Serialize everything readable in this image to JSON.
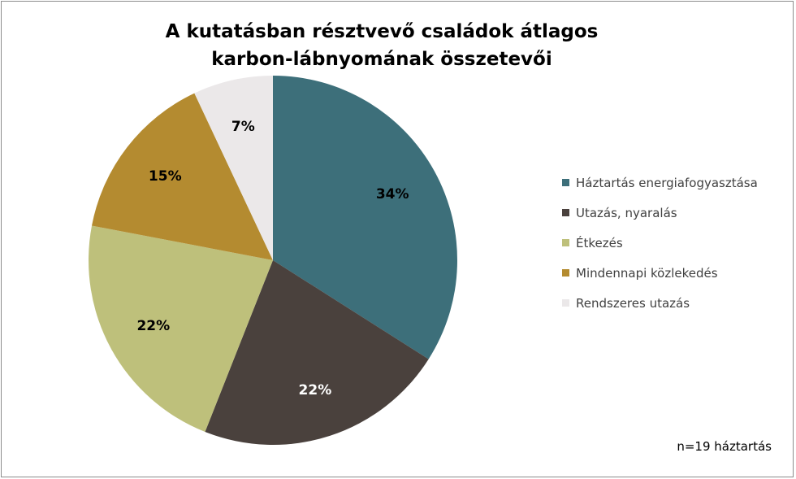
{
  "chart_data": {
    "type": "pie",
    "title": [
      "A kutatásban résztvevő családok átlagos",
      "karbon-lábnyomának összetevői"
    ],
    "categories": [
      "Háztartás energiafogyasztása",
      "Utazás, nyaralás",
      "Étkezés",
      "Mindennapi közlekedés",
      "Rendszeres utazás"
    ],
    "values": [
      34,
      22,
      22,
      15,
      7
    ],
    "labels": [
      "34%",
      "22%",
      "22%",
      "15%",
      "7%"
    ],
    "colors": [
      "#3d6f7a",
      "#4a413d",
      "#bec07b",
      "#b48b30",
      "#ebe8e9"
    ],
    "label_colors": [
      "#000000",
      "#ffffff",
      "#000000",
      "#000000",
      "#000000"
    ],
    "legend_position": "right",
    "note": "n=19 háztartás"
  }
}
